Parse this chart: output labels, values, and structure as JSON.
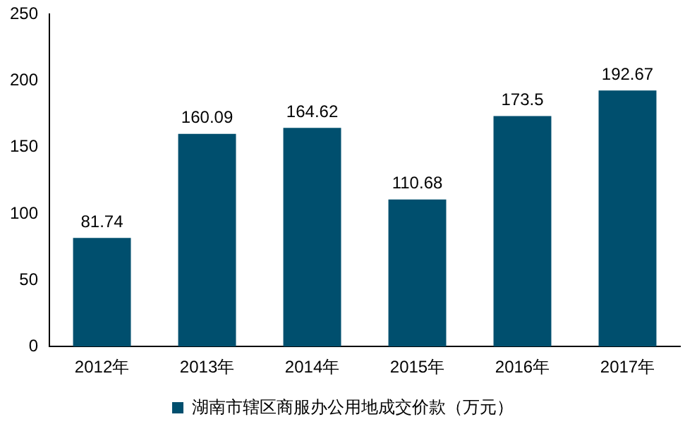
{
  "chart_data": {
    "type": "bar",
    "categories": [
      "2012年",
      "2013年",
      "2014年",
      "2015年",
      "2016年",
      "2017年"
    ],
    "series": [
      {
        "name": "湖南市辖区商服办公用地成交价款（万元）",
        "color": "#004f6e",
        "values": [
          81.74,
          160.09,
          164.62,
          110.68,
          173.5,
          192.67
        ]
      }
    ],
    "ylim": [
      0,
      250
    ],
    "yticks": [
      0,
      50,
      100,
      150,
      200,
      250
    ],
    "grid": false,
    "legend": "bottom",
    "data_labels": true
  }
}
